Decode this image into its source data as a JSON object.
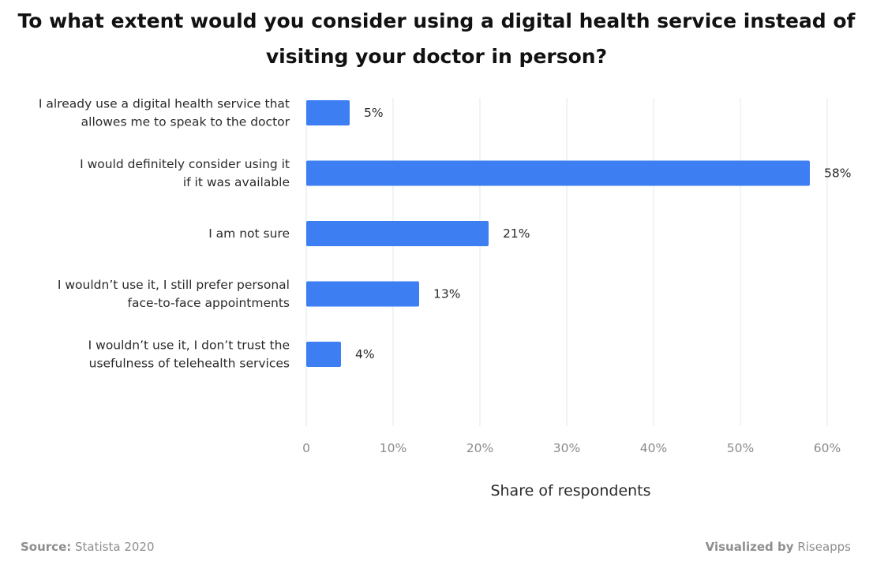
{
  "title_lines": [
    "To what extent would you consider using a digital health service instead of",
    "visiting your doctor in person?"
  ],
  "footer": {
    "source_label": "Source:",
    "source_value": "Statista 2020",
    "visualized_label": "Visualized by",
    "visualized_value": "Riseapps"
  },
  "colors": {
    "bar": "#3d7ff2",
    "grid": "#dce8f5",
    "axis_text": "#8a8a8a"
  },
  "chart_data": {
    "type": "bar",
    "orientation": "horizontal",
    "categories": [
      [
        "I already use a digital health service that",
        "allowes me to speak to the doctor"
      ],
      [
        "I would definitely consider using it",
        "if it was available"
      ],
      [
        "I am not sure"
      ],
      [
        "I wouldn’t use it, I still prefer personal",
        "face-to-face appointments"
      ],
      [
        "I wouldn’t use it, I don’t trust the",
        "usefulness of telehealth services"
      ]
    ],
    "values": [
      5,
      58,
      21,
      13,
      4
    ],
    "value_labels": [
      "5%",
      "58%",
      "21%",
      "13%",
      "4%"
    ],
    "xlabel": "Share of respondents",
    "xlim": [
      0,
      60
    ],
    "ticks": [
      0,
      10,
      20,
      30,
      40,
      50,
      60
    ],
    "tick_labels": [
      "0",
      "10%",
      "20%",
      "30%",
      "40%",
      "50%",
      "60%"
    ],
    "grid": true
  }
}
